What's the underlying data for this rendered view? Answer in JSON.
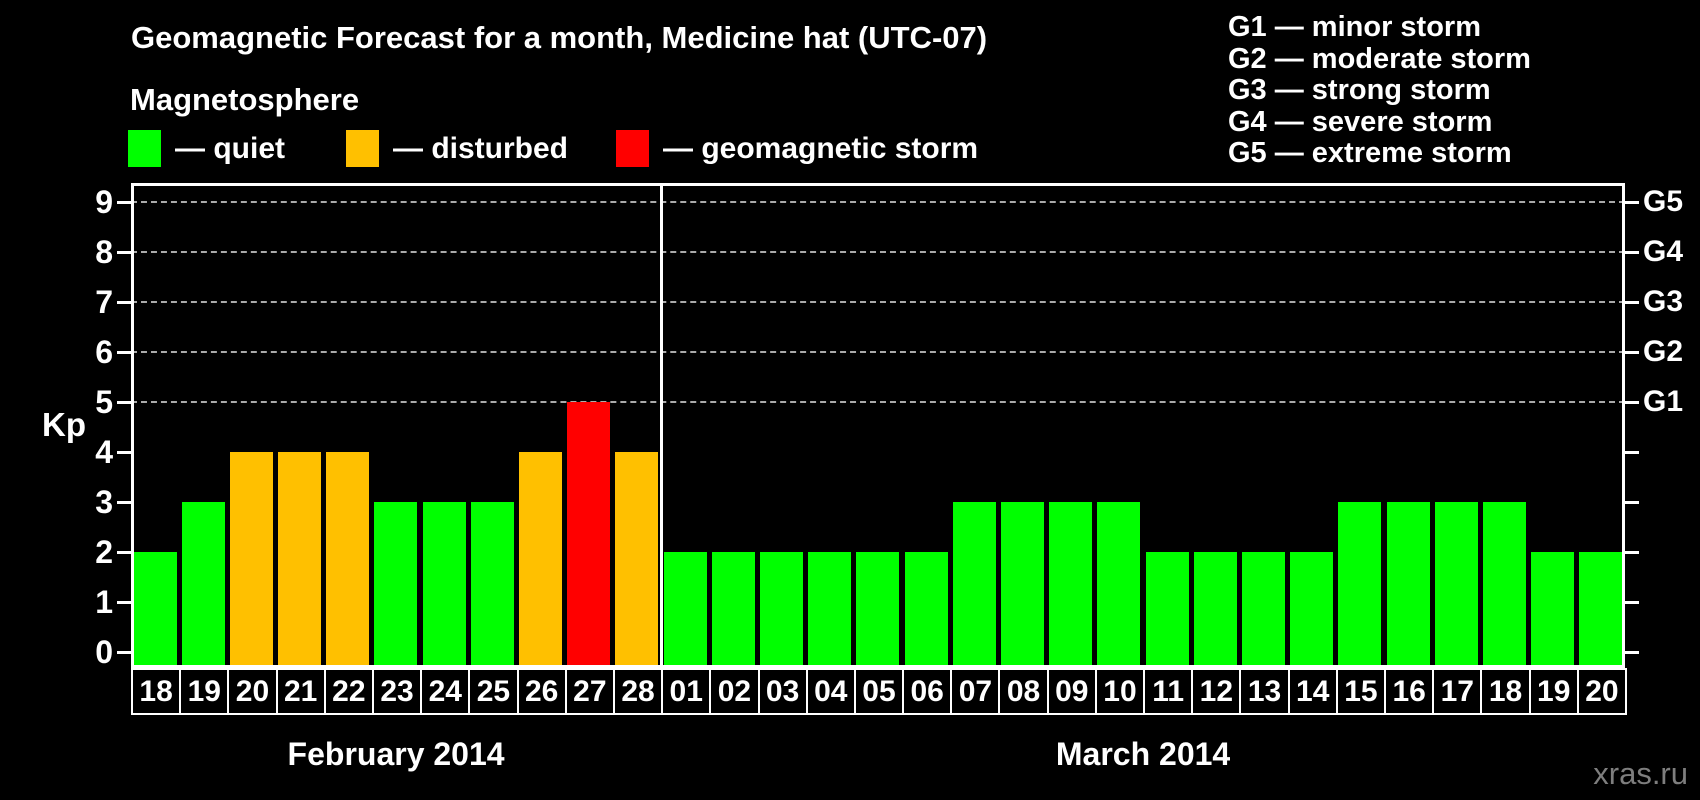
{
  "header": {
    "title": "Geomagnetic Forecast for a month, Medicine hat (UTC-07)",
    "subtitle": "Magnetosphere"
  },
  "legend": {
    "items": [
      {
        "name": "quiet",
        "label": "— quiet",
        "color": "#00ff00"
      },
      {
        "name": "disturbed",
        "label": "— disturbed",
        "color": "#ffc000"
      },
      {
        "name": "storm",
        "label": "— geomagnetic storm",
        "color": "#ff0000"
      }
    ]
  },
  "g_scale_legend": {
    "items": [
      "G1 — minor storm",
      "G2 — moderate storm",
      "G3 — strong storm",
      "G4 — severe storm",
      "G5 — extreme storm"
    ]
  },
  "watermark": "xras.ru",
  "chart_data": {
    "type": "bar",
    "title": "Geomagnetic Forecast for a month, Medicine hat (UTC-07)",
    "ylabel": "Kp",
    "ylim": [
      0,
      9
    ],
    "y_ticks": [
      0,
      1,
      2,
      3,
      4,
      5,
      6,
      7,
      8,
      9
    ],
    "gridlines_at": [
      5,
      6,
      7,
      8,
      9
    ],
    "grid": "dashed horizontal at Kp 5-9 only",
    "right_axis_labels": [
      {
        "kp": 5,
        "label": "G1"
      },
      {
        "kp": 6,
        "label": "G2"
      },
      {
        "kp": 7,
        "label": "G3"
      },
      {
        "kp": 8,
        "label": "G4"
      },
      {
        "kp": 9,
        "label": "G5"
      }
    ],
    "status_colors": {
      "quiet": "#00ff00",
      "disturbed": "#ffc000",
      "storm": "#ff0000"
    },
    "months": [
      {
        "label": "February 2014",
        "days": [
          "18",
          "19",
          "20",
          "21",
          "22",
          "23",
          "24",
          "25",
          "26",
          "27",
          "28"
        ],
        "values": [
          2,
          3,
          4,
          4,
          4,
          3,
          3,
          3,
          4,
          5,
          4
        ],
        "status": [
          "quiet",
          "quiet",
          "disturbed",
          "disturbed",
          "disturbed",
          "quiet",
          "quiet",
          "quiet",
          "disturbed",
          "storm",
          "disturbed"
        ]
      },
      {
        "label": "March 2014",
        "days": [
          "01",
          "02",
          "03",
          "04",
          "05",
          "06",
          "07",
          "08",
          "09",
          "10",
          "11",
          "12",
          "13",
          "14",
          "15",
          "16",
          "17",
          "18",
          "19",
          "20"
        ],
        "values": [
          2,
          2,
          2,
          2,
          2,
          2,
          3,
          3,
          3,
          3,
          2,
          2,
          2,
          2,
          3,
          3,
          3,
          3,
          2,
          2
        ],
        "status": [
          "quiet",
          "quiet",
          "quiet",
          "quiet",
          "quiet",
          "quiet",
          "quiet",
          "quiet",
          "quiet",
          "quiet",
          "quiet",
          "quiet",
          "quiet",
          "quiet",
          "quiet",
          "quiet",
          "quiet",
          "quiet",
          "quiet",
          "quiet"
        ]
      }
    ]
  }
}
